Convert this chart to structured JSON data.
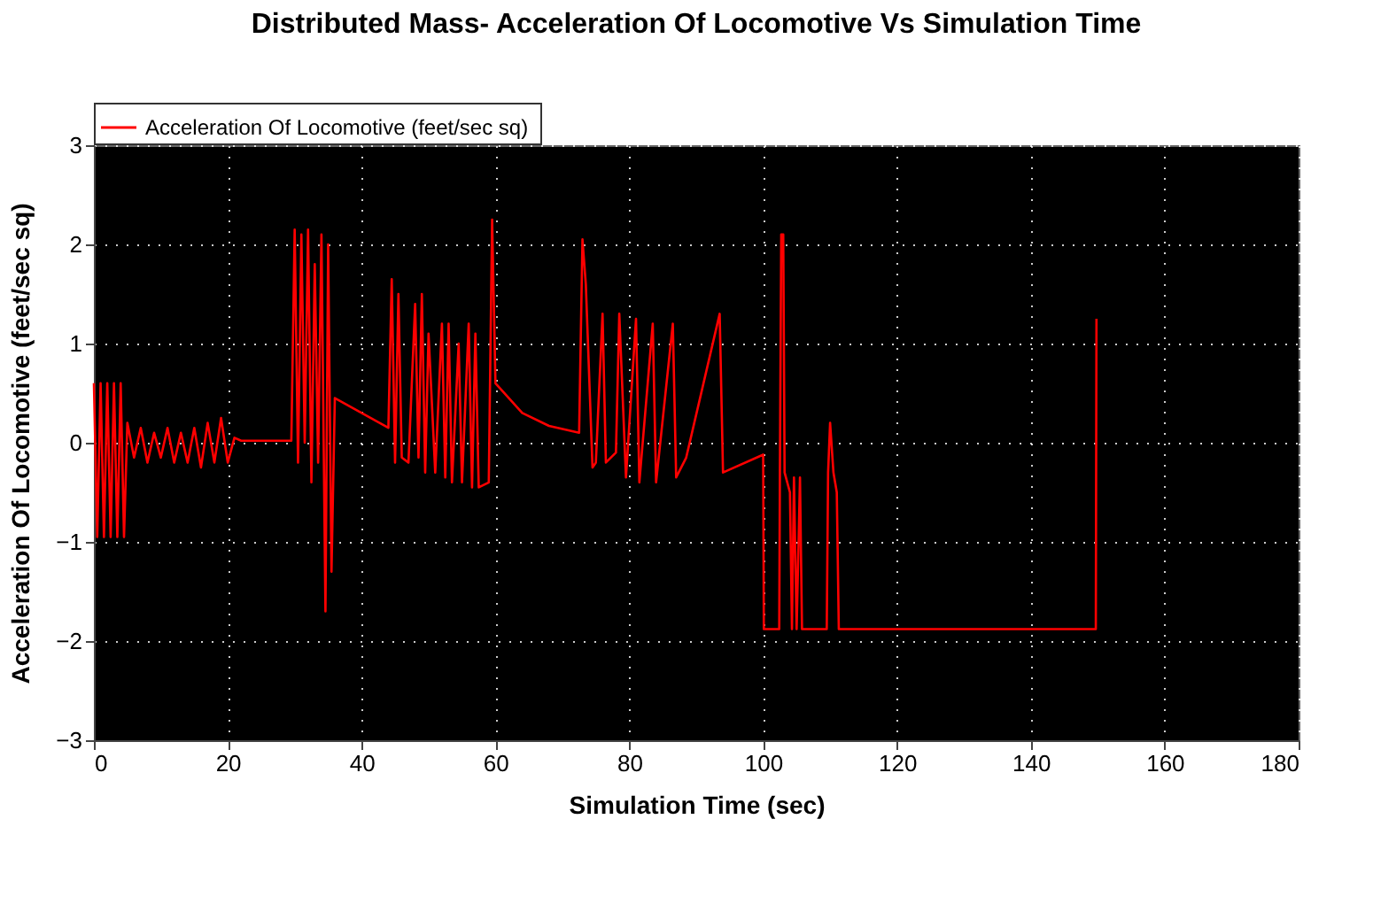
{
  "chart_data": {
    "type": "line",
    "title": "Distributed Mass- Acceleration Of Locomotive  Vs Simulation Time",
    "xlabel": "Simulation Time  (sec)",
    "ylabel": "Acceleration Of Locomotive  (feet/sec sq)",
    "xlim": [
      0,
      180
    ],
    "xticks": [
      0,
      20,
      40,
      60,
      80,
      100,
      120,
      140,
      160,
      180
    ],
    "ylim": [
      -3,
      3
    ],
    "yticks": [
      -3,
      -2,
      -1,
      0,
      1,
      2,
      3
    ],
    "grid": true,
    "legend": "top left",
    "line_style": "solid",
    "series": [
      {
        "name": "Acceleration Of Locomotive  (feet/sec sq)",
        "color": "#ff0000",
        "x": [
          0,
          0.5,
          1,
          1.5,
          2,
          2.5,
          3,
          3.5,
          4,
          4.5,
          5,
          6,
          7,
          8,
          9,
          10,
          11,
          12,
          13,
          14,
          15,
          16,
          17,
          18,
          19,
          20,
          21,
          22,
          29.5,
          30,
          30.5,
          31,
          31.5,
          32,
          32.5,
          33,
          33.5,
          34,
          34.6,
          35,
          35.5,
          36,
          40,
          44,
          44.5,
          45,
          45.5,
          46,
          47,
          48,
          48.5,
          49,
          49.5,
          50,
          51,
          52,
          52.5,
          53,
          53.5,
          54.5,
          55,
          56,
          56.5,
          57,
          57.5,
          59,
          59.5,
          60,
          64,
          68,
          72.5,
          73,
          73.5,
          74.5,
          75,
          76,
          76.5,
          78,
          78.5,
          79.5,
          81,
          81.5,
          83.5,
          84,
          86.5,
          87,
          88.5,
          93.5,
          94,
          100,
          100.1,
          102.4,
          102.5,
          102.7,
          103,
          103.2,
          104,
          104.3,
          104.6,
          105,
          105.5,
          105.8,
          109.5,
          109.7,
          110,
          110.5,
          111,
          111.3,
          149.7,
          149.8
        ],
        "values": [
          0.6,
          -0.95,
          0.6,
          -0.95,
          0.6,
          -0.95,
          0.6,
          -0.95,
          0.6,
          -0.95,
          0.2,
          -0.15,
          0.15,
          -0.2,
          0.1,
          -0.15,
          0.15,
          -0.2,
          0.1,
          -0.2,
          0.15,
          -0.25,
          0.2,
          -0.2,
          0.25,
          -0.2,
          0.05,
          0.02,
          0.02,
          2.15,
          -0.2,
          2.1,
          0.0,
          2.15,
          -0.4,
          1.8,
          -0.2,
          2.1,
          -1.7,
          2.0,
          -1.3,
          0.45,
          0.3,
          0.15,
          1.65,
          -0.2,
          1.5,
          -0.15,
          -0.2,
          1.4,
          -0.15,
          1.5,
          -0.3,
          1.1,
          -0.3,
          1.2,
          -0.35,
          1.2,
          -0.4,
          1.0,
          -0.4,
          1.2,
          -0.45,
          1.1,
          -0.45,
          -0.4,
          2.25,
          0.6,
          0.3,
          0.17,
          0.1,
          2.05,
          1.6,
          -0.25,
          -0.2,
          1.3,
          -0.2,
          -0.1,
          1.3,
          -0.35,
          1.25,
          -0.4,
          1.2,
          -0.4,
          1.2,
          -0.35,
          -0.15,
          1.3,
          -0.3,
          -0.12,
          -1.88,
          -1.88,
          -0.3,
          2.1,
          2.1,
          -0.3,
          -0.5,
          -1.88,
          -0.35,
          -1.88,
          -0.35,
          -1.88,
          -1.88,
          -0.3,
          0.2,
          -0.3,
          -0.5,
          -1.88,
          -1.88,
          1.25
        ]
      }
    ]
  }
}
